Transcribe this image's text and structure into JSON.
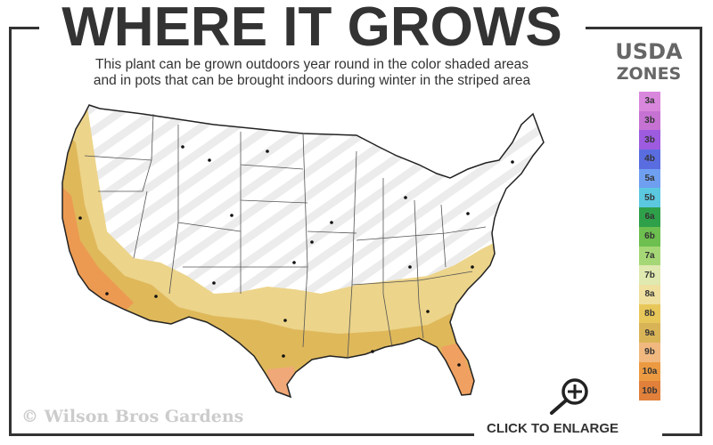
{
  "header": {
    "title": "WHERE IT GROWS",
    "subtitle_line1": "This plant can be grown outdoors year round in the color shaded areas",
    "subtitle_line2": "and in pots that can be brought indoors during winter in the striped area"
  },
  "legend": {
    "title_line1": "USDA",
    "title_line2": "ZONES",
    "zones": [
      {
        "label": "3a",
        "color": "#d987dd"
      },
      {
        "label": "3b",
        "color": "#c672d3"
      },
      {
        "label": "3b",
        "color": "#9d5be0"
      },
      {
        "label": "4b",
        "color": "#5a6de0"
      },
      {
        "label": "5a",
        "color": "#6f9ff0"
      },
      {
        "label": "5b",
        "color": "#5bc8e0"
      },
      {
        "label": "6a",
        "color": "#2fa04a"
      },
      {
        "label": "6b",
        "color": "#6dbf4f"
      },
      {
        "label": "7a",
        "color": "#a6d776"
      },
      {
        "label": "7b",
        "color": "#dfe9b0"
      },
      {
        "label": "8a",
        "color": "#efe0a0"
      },
      {
        "label": "8b",
        "color": "#e8c75a"
      },
      {
        "label": "9a",
        "color": "#d9b457"
      },
      {
        "label": "9b",
        "color": "#f1b980"
      },
      {
        "label": "10a",
        "color": "#ec9a42"
      },
      {
        "label": "10b",
        "color": "#e0803a"
      }
    ]
  },
  "map": {
    "shaded_meaning": "grown outdoors year round",
    "striped_meaning": "pots brought indoors in winter"
  },
  "footer": {
    "copyright": "© Wilson Bros Gardens",
    "enlarge_label": "CLICK TO ENLARGE",
    "enlarge_icon": "zoom-in-icon"
  }
}
